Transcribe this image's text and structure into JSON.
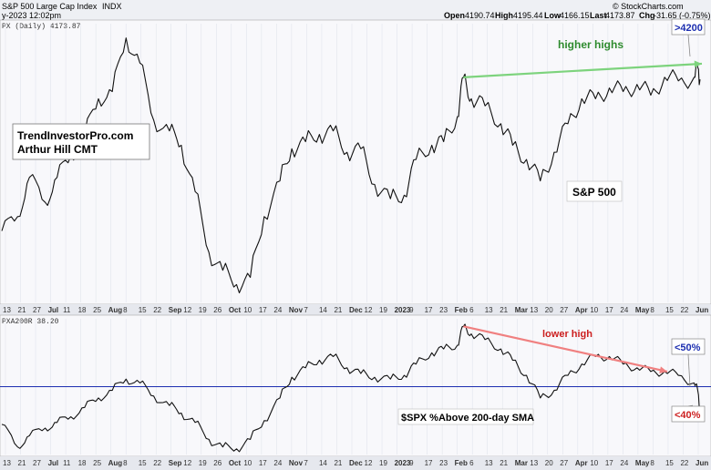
{
  "header": {
    "title": "S&P 500 Large Cap Index",
    "exchange": "INDX",
    "datetime": "y-2023 12:02pm",
    "open_label": "Open",
    "open": "4190.74",
    "high_label": "High",
    "high": "4195.44",
    "low_label": "Low",
    "low": "4166.15",
    "close_label": "Last",
    "close": "4173.87",
    "change_label": "Chg",
    "change": "-31.65 (-0.75%)",
    "credit": "© StockCharts.com"
  },
  "chart_data": [
    {
      "type": "line",
      "panel_label": "PX (Daily) 4173.87",
      "series": [
        {
          "name": "",
          "x": [
            "2022-06-13",
            "2022-06-21",
            "2022-06-27",
            "2022-07-05",
            "2022-07-11",
            "2022-07-18",
            "2022-07-25",
            "2022-08-01",
            "2022-08-08",
            "2022-08-15",
            "2022-08-22",
            "2022-08-29",
            "2022-09-06",
            "2022-09-12",
            "2022-09-19",
            "2022-09-26",
            "2022-10-03",
            "2022-10-10",
            "2022-10-17",
            "2022-10-24",
            "2022-11-01",
            "2022-11-07",
            "2022-11-14",
            "2022-11-21",
            "2022-11-28",
            "2022-12-05",
            "2022-12-12",
            "2022-12-19",
            "2022-12-27",
            "2023-01-03",
            "2023-01-09",
            "2023-01-17",
            "2023-01-23",
            "2023-01-30",
            "2023-02-02",
            "2023-02-06",
            "2023-02-13",
            "2023-02-21",
            "2023-02-27",
            "2023-03-06",
            "2023-03-13",
            "2023-03-20",
            "2023-03-27",
            "2023-04-03",
            "2023-04-10",
            "2023-04-17",
            "2023-04-24",
            "2023-05-01",
            "2023-05-08",
            "2023-05-15",
            "2023-05-22",
            "2023-05-30",
            "2023-06-01",
            "2023-06-02"
          ],
          "values": [
            3750,
            3790,
            3900,
            3830,
            3900,
            3960,
            4020,
            4120,
            4140,
            4290,
            4220,
            4060,
            4030,
            3990,
            3860,
            3690,
            3640,
            3600,
            3620,
            3790,
            3890,
            3980,
            4000,
            4020,
            4030,
            3970,
            3980,
            3880,
            3840,
            3850,
            3950,
            3990,
            4000,
            4070,
            4180,
            4120,
            4100,
            4050,
            3990,
            3950,
            3890,
            3970,
            4050,
            4120,
            4120,
            4150,
            4140,
            4160,
            4130,
            4180,
            4170,
            4180,
            4205,
            4174
          ]
        }
      ],
      "ylim": [
        3550,
        4330
      ],
      "x_tick_labels": [
        "13",
        "21",
        "27",
        "Jul",
        "11",
        "18",
        "25",
        "Aug",
        "8",
        "15",
        "22",
        "Sep",
        "12",
        "19",
        "26",
        "Oct",
        "10",
        "17",
        "24",
        "Nov",
        "7",
        "14",
        "21",
        "Dec",
        "12",
        "19",
        "2023",
        "9",
        "17",
        "23",
        "Feb",
        "6",
        "13",
        "21",
        "Mar",
        "13",
        "20",
        "27",
        "Apr",
        "10",
        "17",
        "24",
        "May",
        "8",
        "15",
        "22",
        "Jun"
      ],
      "annotations": {
        "box_line1": "TrendInvestorPro.com",
        "box_line2": "Arthur Hill CMT",
        "trend_label": "higher highs",
        "series_label": "S&P 500",
        "callout": ">4200"
      },
      "colors": {
        "line": "#111111",
        "trend": "#7dd37d",
        "callout": "#1d2fb0"
      }
    },
    {
      "type": "line",
      "panel_label": "PXA200R 38.20",
      "series": [
        {
          "name": "",
          "x": [
            "2022-06-13",
            "2022-06-21",
            "2022-06-27",
            "2022-07-05",
            "2022-07-11",
            "2022-07-18",
            "2022-07-25",
            "2022-08-01",
            "2022-08-08",
            "2022-08-15",
            "2022-08-22",
            "2022-08-29",
            "2022-09-06",
            "2022-09-12",
            "2022-09-19",
            "2022-09-26",
            "2022-10-03",
            "2022-10-10",
            "2022-10-17",
            "2022-10-24",
            "2022-11-01",
            "2022-11-07",
            "2022-11-14",
            "2022-11-21",
            "2022-11-28",
            "2022-12-05",
            "2022-12-12",
            "2022-12-19",
            "2022-12-27",
            "2023-01-03",
            "2023-01-09",
            "2023-01-17",
            "2023-01-23",
            "2023-01-30",
            "2023-02-02",
            "2023-02-06",
            "2023-02-13",
            "2023-02-21",
            "2023-02-27",
            "2023-03-06",
            "2023-03-13",
            "2023-03-20",
            "2023-03-27",
            "2023-04-03",
            "2023-04-10",
            "2023-04-17",
            "2023-04-24",
            "2023-05-01",
            "2023-05-08",
            "2023-05-15",
            "2023-05-22",
            "2023-05-30",
            "2023-06-01",
            "2023-06-02"
          ],
          "values": [
            30,
            18,
            24,
            28,
            31,
            34,
            39,
            44,
            48,
            54,
            52,
            45,
            40,
            36,
            31,
            22,
            18,
            17,
            22,
            32,
            44,
            55,
            60,
            64,
            66,
            60,
            57,
            55,
            54,
            56,
            62,
            68,
            70,
            72,
            82,
            78,
            75,
            70,
            64,
            56,
            44,
            48,
            56,
            62,
            66,
            66,
            62,
            60,
            58,
            58,
            56,
            52,
            47,
            38
          ]
        }
      ],
      "ylim": [
        14,
        86
      ],
      "reference_line": 50,
      "x_tick_labels": [
        "13",
        "21",
        "27",
        "Jul",
        "11",
        "18",
        "25",
        "Aug",
        "8",
        "15",
        "22",
        "Sep",
        "12",
        "19",
        "26",
        "Oct",
        "10",
        "17",
        "24",
        "Nov",
        "7",
        "14",
        "21",
        "Dec",
        "12",
        "19",
        "2023",
        "9",
        "17",
        "23",
        "Feb",
        "6",
        "13",
        "21",
        "Mar",
        "13",
        "20",
        "27",
        "Apr",
        "10",
        "17",
        "24",
        "May",
        "8",
        "15",
        "22",
        "Jun"
      ],
      "annotations": {
        "trend_label": "lower high",
        "series_label": "$SPX %Above 200-day SMA",
        "callout_top": "<50%",
        "callout_bottom": "<40%"
      },
      "colors": {
        "line": "#111111",
        "trend": "#f08080",
        "reference": "#1d2fb0"
      }
    }
  ]
}
